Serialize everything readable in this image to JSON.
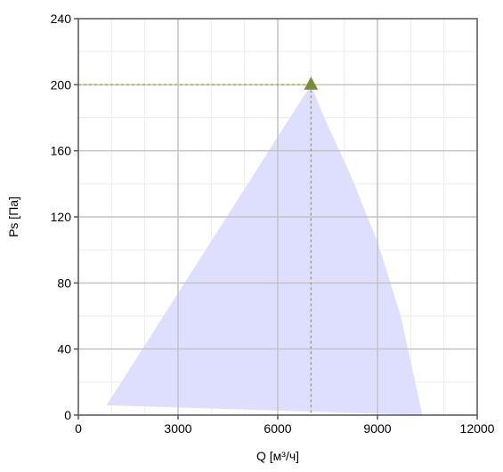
{
  "chart_data": {
    "type": "area",
    "title": "",
    "xlabel": "Q [м³/ч]",
    "ylabel": "Ps [Па]",
    "xlim": [
      0,
      12000
    ],
    "ylim": [
      0,
      240
    ],
    "x_ticks": [
      0,
      3000,
      6000,
      9000,
      12000
    ],
    "y_ticks": [
      0,
      40,
      80,
      120,
      160,
      200,
      240
    ],
    "x_tick_labels": [
      "0",
      "3000",
      "6000",
      "9000",
      "12000"
    ],
    "y_tick_labels": [
      "0",
      "40",
      "80",
      "120",
      "160",
      "200",
      "240"
    ],
    "x_minor_step": 1000,
    "y_minor_step": 20,
    "grid": true,
    "legend": "none",
    "operating_region": {
      "color": "#dcdcff",
      "x": [
        850,
        7000,
        7400,
        8200,
        9000,
        9700,
        10350
      ],
      "y": [
        6,
        200,
        180,
        145,
        105,
        60,
        0
      ]
    },
    "operating_point": {
      "x": 7000,
      "y": 200,
      "color": "#7a8c3a"
    },
    "guide_line_color": "#9aab52"
  }
}
